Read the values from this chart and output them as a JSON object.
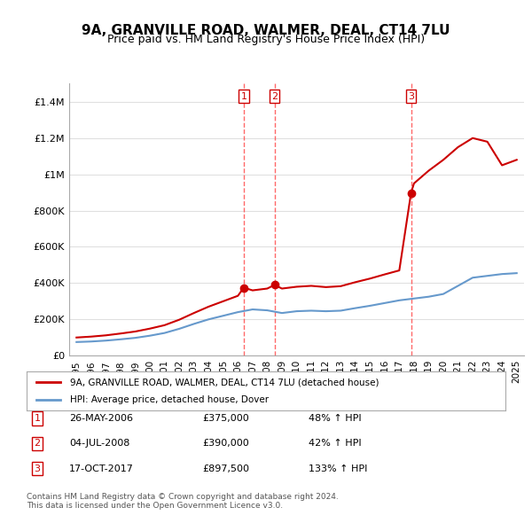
{
  "title": "9A, GRANVILLE ROAD, WALMER, DEAL, CT14 7LU",
  "subtitle": "Price paid vs. HM Land Registry's House Price Index (HPI)",
  "ylabel_ticks": [
    "£0",
    "£200K",
    "£400K",
    "£600K",
    "£800K",
    "£1M",
    "£1.2M",
    "£1.4M"
  ],
  "ytick_values": [
    0,
    200000,
    400000,
    600000,
    800000,
    1000000,
    1200000,
    1400000
  ],
  "ylim": [
    0,
    1500000
  ],
  "xlim_start": 1994.5,
  "xlim_end": 2025.5,
  "bg_color": "#ffffff",
  "grid_color": "#e0e0e0",
  "red_line_color": "#cc0000",
  "blue_line_color": "#6699cc",
  "marker_color": "#cc0000",
  "dashed_line_color": "#ff4444",
  "legend_label_red": "9A, GRANVILLE ROAD, WALMER, DEAL, CT14 7LU (detached house)",
  "legend_label_blue": "HPI: Average price, detached house, Dover",
  "transactions": [
    {
      "num": 1,
      "date": "26-MAY-2006",
      "price": "£375,000",
      "pct": "48% ↑ HPI",
      "year": 2006.4
    },
    {
      "num": 2,
      "date": "04-JUL-2008",
      "price": "£390,000",
      "pct": "42% ↑ HPI",
      "year": 2008.5
    },
    {
      "num": 3,
      "date": "17-OCT-2017",
      "price": "£897,500",
      "pct": "133% ↑ HPI",
      "year": 2017.8
    }
  ],
  "transaction_prices": [
    375000,
    390000,
    897500
  ],
  "footer": "Contains HM Land Registry data © Crown copyright and database right 2024.\nThis data is licensed under the Open Government Licence v3.0.",
  "hpi_years": [
    1995,
    1996,
    1997,
    1998,
    1999,
    2000,
    2001,
    2002,
    2003,
    2004,
    2005,
    2006,
    2007,
    2008,
    2009,
    2010,
    2011,
    2012,
    2013,
    2014,
    2015,
    2016,
    2017,
    2018,
    2019,
    2020,
    2021,
    2022,
    2023,
    2024,
    2025
  ],
  "hpi_values": [
    75000,
    78000,
    83000,
    90000,
    98000,
    110000,
    125000,
    148000,
    175000,
    200000,
    220000,
    240000,
    255000,
    250000,
    235000,
    245000,
    248000,
    245000,
    248000,
    262000,
    275000,
    290000,
    305000,
    315000,
    325000,
    340000,
    385000,
    430000,
    440000,
    450000,
    455000
  ],
  "prop_years": [
    1995,
    1996,
    1997,
    1998,
    1999,
    2000,
    2001,
    2002,
    2003,
    2004,
    2005,
    2006,
    2006.4,
    2007,
    2008,
    2008.5,
    2009,
    2010,
    2011,
    2012,
    2013,
    2014,
    2015,
    2016,
    2017,
    2017.8,
    2018,
    2019,
    2020,
    2021,
    2022,
    2023,
    2024,
    2025
  ],
  "prop_values": [
    100000,
    105000,
    112000,
    122000,
    133000,
    149000,
    168000,
    198000,
    235000,
    270000,
    300000,
    330000,
    375000,
    360000,
    370000,
    390000,
    370000,
    380000,
    385000,
    378000,
    383000,
    405000,
    425000,
    448000,
    470000,
    897500,
    950000,
    1020000,
    1080000,
    1150000,
    1200000,
    1180000,
    1050000,
    1080000
  ]
}
